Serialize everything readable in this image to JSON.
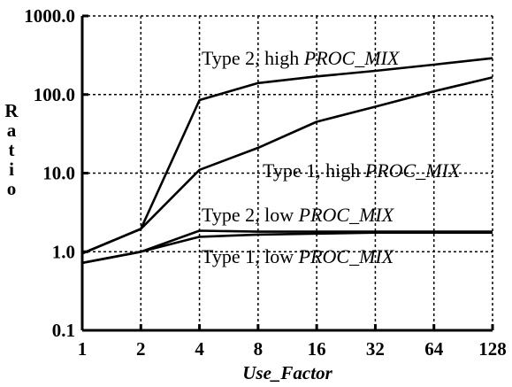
{
  "chart_data": {
    "type": "line",
    "xlabel": "Use_Factor",
    "ylabel": "Ratio",
    "x_scale": "log2",
    "y_scale": "log10",
    "x": [
      1,
      2,
      4,
      8,
      16,
      32,
      64,
      128
    ],
    "x_tick_labels": [
      "1",
      "2",
      "4",
      "8",
      "16",
      "32",
      "64",
      "128"
    ],
    "y_ticks": [
      0.1,
      1.0,
      10.0,
      100.0,
      1000.0
    ],
    "y_tick_labels": [
      "0.1",
      "1.0",
      "10.0",
      "100.0",
      "1000.0"
    ],
    "xlim": [
      1,
      128
    ],
    "ylim": [
      0.1,
      1000
    ],
    "grid": true,
    "series": [
      {
        "name": "Type 2, high PROC_MIX",
        "label_plain": "Type 2, high ",
        "label_italic": "PROC_MIX",
        "values": [
          0.95,
          1.95,
          85,
          140,
          170,
          200,
          240,
          290
        ]
      },
      {
        "name": "Type 1, high PROC_MIX",
        "label_plain": "Type 1, high ",
        "label_italic": "PROC_MIX",
        "values": [
          0.95,
          1.95,
          11,
          21,
          45,
          70,
          110,
          165
        ]
      },
      {
        "name": "Type 2, low PROC_MIX",
        "label_plain": "Type 2, low ",
        "label_italic": "PROC_MIX",
        "values": [
          0.72,
          1.0,
          1.85,
          1.8,
          1.8,
          1.8,
          1.8,
          1.8
        ]
      },
      {
        "name": "Type 1, low PROC_MIX",
        "label_plain": "Type 1, low ",
        "label_italic": "PROC_MIX",
        "values": [
          0.72,
          1.0,
          1.55,
          1.65,
          1.7,
          1.75,
          1.75,
          1.75
        ]
      }
    ]
  }
}
